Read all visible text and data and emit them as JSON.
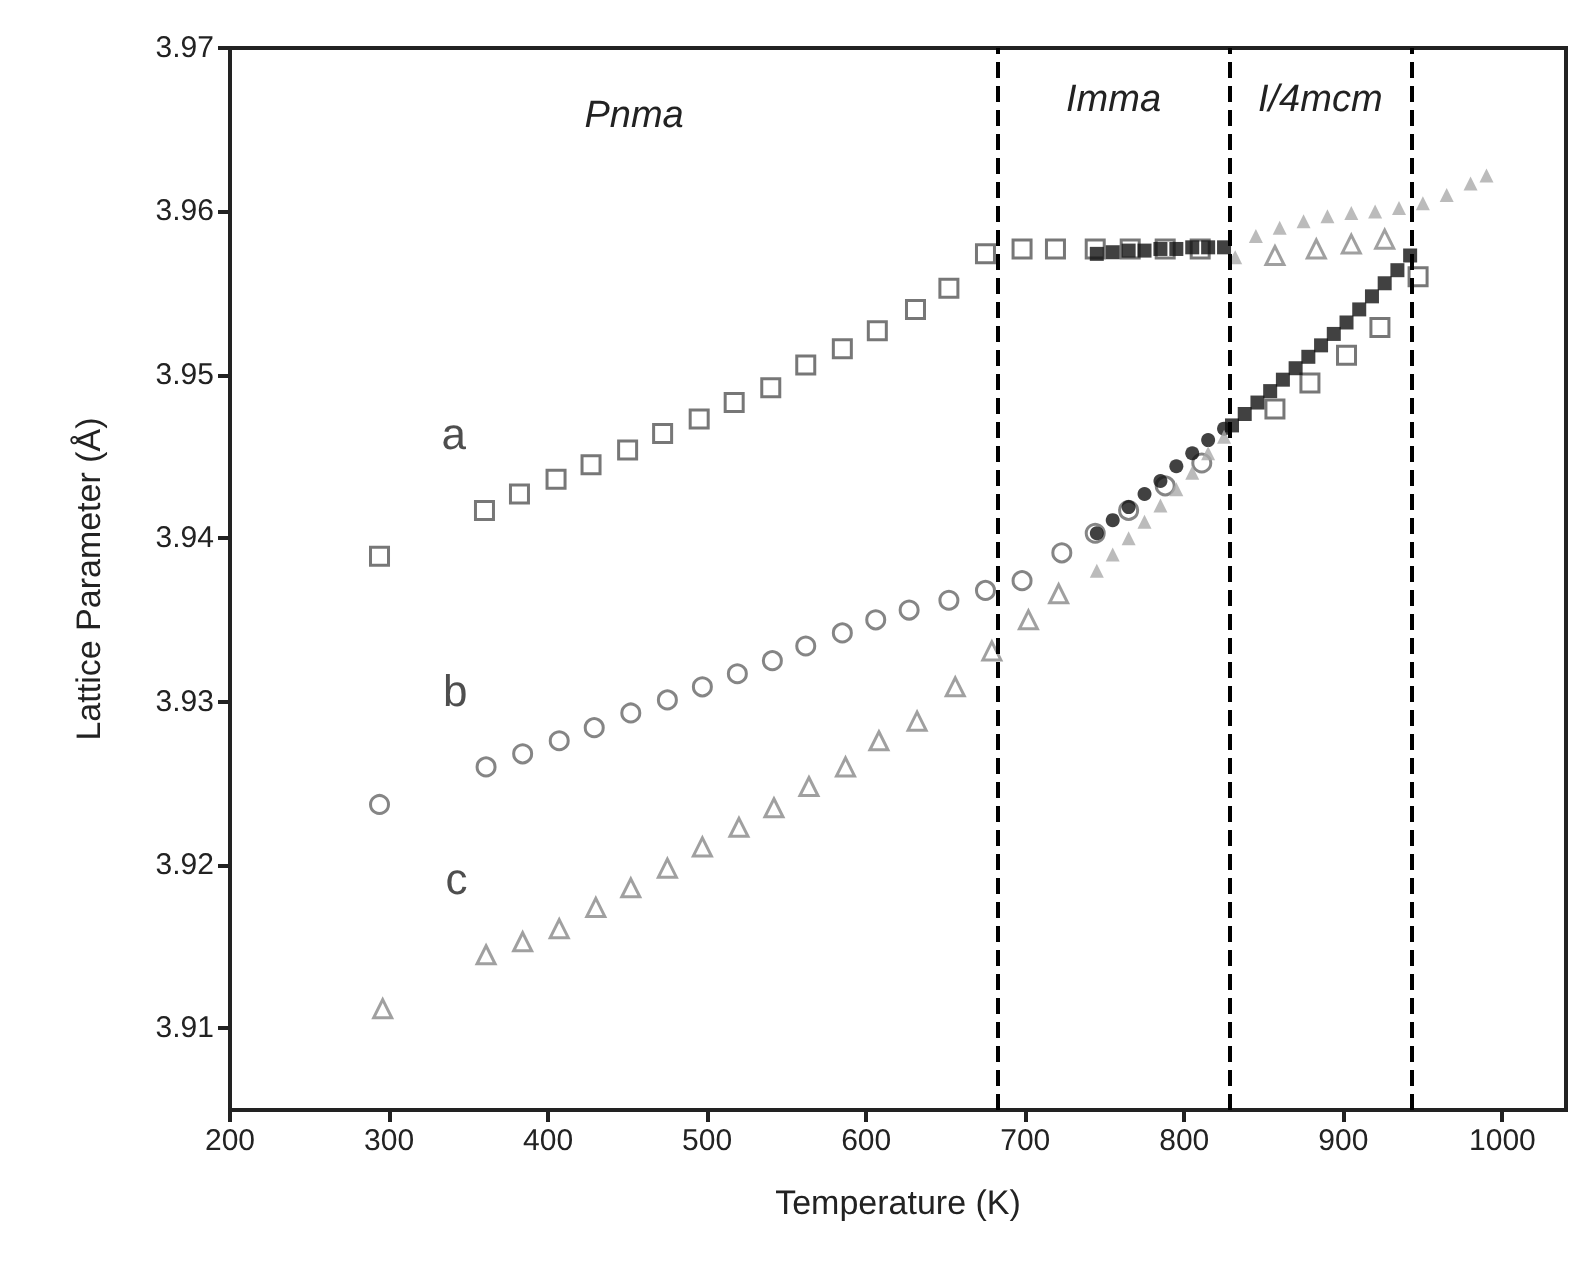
{
  "chart_data": {
    "type": "scatter",
    "xlabel": "Temperature (K)",
    "ylabel": "Lattice Parameter (Å)",
    "xlim": [
      200,
      1040
    ],
    "xticks": [
      200,
      300,
      400,
      500,
      600,
      700,
      800,
      900,
      1000
    ],
    "ylim": [
      3.905,
      3.97
    ],
    "yticks": [
      3.91,
      3.92,
      3.93,
      3.94,
      3.95,
      3.96,
      3.97
    ],
    "grid": false,
    "legend": false,
    "series": [
      {
        "name": "a",
        "color": "#555555",
        "marker": "square",
        "x": [
          294,
          360,
          382,
          405,
          427,
          450,
          472,
          495,
          517,
          540,
          562,
          585,
          607,
          631,
          652,
          675,
          698,
          719,
          744,
          766,
          788,
          810,
          857,
          879,
          902,
          923,
          947
        ],
        "values": [
          3.9389,
          3.9417,
          3.9427,
          3.9436,
          3.9445,
          3.9454,
          3.9464,
          3.9473,
          3.9483,
          3.9492,
          3.9506,
          3.9516,
          3.9527,
          3.954,
          3.9553,
          3.9574,
          3.9577,
          3.9577,
          3.9577,
          3.9577,
          3.9577,
          3.9577,
          3.9479,
          3.9495,
          3.9512,
          3.9529,
          3.956
        ]
      },
      {
        "name": "b",
        "color": "#666666",
        "marker": "circle",
        "x": [
          294,
          361,
          384,
          407,
          429,
          452,
          475,
          497,
          519,
          541,
          562,
          585,
          606,
          627,
          652,
          675,
          698,
          723,
          744,
          765,
          788,
          811
        ],
        "values": [
          3.9237,
          3.926,
          3.9268,
          3.9276,
          3.9284,
          3.9293,
          3.9301,
          3.9309,
          3.9317,
          3.9325,
          3.9334,
          3.9342,
          3.935,
          3.9356,
          3.9362,
          3.9368,
          3.9374,
          3.9391,
          3.9403,
          3.9417,
          3.9432,
          3.9446
        ]
      },
      {
        "name": "c",
        "color": "#888888",
        "marker": "triangle",
        "x": [
          296,
          361,
          384,
          407,
          430,
          452,
          475,
          497,
          520,
          542,
          564,
          587,
          608,
          632,
          656,
          679,
          702,
          721,
          857,
          883,
          905,
          926
        ],
        "values": [
          3.9112,
          3.9145,
          3.9153,
          3.9161,
          3.9174,
          3.9186,
          3.9198,
          3.9211,
          3.9223,
          3.9235,
          3.9248,
          3.926,
          3.9276,
          3.9288,
          3.9309,
          3.9331,
          3.935,
          3.9366,
          3.9573,
          3.9577,
          3.958,
          3.9583
        ]
      },
      {
        "color": "#111111",
        "marker": "square",
        "x": [
          745,
          755,
          765,
          775,
          785,
          795,
          805,
          815,
          825,
          830,
          838,
          846,
          854,
          862,
          870,
          878,
          886,
          894,
          902,
          910,
          918,
          926,
          934,
          942
        ],
        "values": [
          3.9574,
          3.9575,
          3.9576,
          3.9576,
          3.9577,
          3.9577,
          3.9578,
          3.9578,
          3.9578,
          3.9469,
          3.9476,
          3.9483,
          3.949,
          3.9497,
          3.9504,
          3.9511,
          3.9518,
          3.9525,
          3.9532,
          3.954,
          3.9548,
          3.9556,
          3.9564,
          3.9573
        ]
      },
      {
        "color": "#111111",
        "marker": "circle",
        "x": [
          745,
          755,
          765,
          775,
          785,
          795,
          805,
          815,
          825
        ],
        "values": [
          3.9403,
          3.9411,
          3.9419,
          3.9427,
          3.9435,
          3.9444,
          3.9452,
          3.946,
          3.9467
        ]
      },
      {
        "color": "#aaaaaa",
        "marker": "triangle",
        "x": [
          745,
          755,
          765,
          775,
          785,
          795,
          805,
          815,
          825,
          832,
          845,
          860,
          875,
          890,
          905,
          920,
          935,
          950,
          965,
          980,
          990
        ],
        "values": [
          3.938,
          3.939,
          3.94,
          3.941,
          3.942,
          3.943,
          3.944,
          3.9452,
          3.9462,
          3.9572,
          3.9585,
          3.959,
          3.9594,
          3.9597,
          3.9599,
          3.96,
          3.9602,
          3.9605,
          3.961,
          3.9617,
          3.9622
        ]
      }
    ],
    "ref_lines": [
      {
        "axis": "x",
        "value": 683,
        "line_style": "dashed",
        "color": "#000000"
      },
      {
        "axis": "x",
        "value": 828,
        "line_style": "dashed",
        "color": "#000000"
      },
      {
        "axis": "x",
        "value": 943,
        "line_style": "dashed",
        "color": "#000000"
      }
    ],
    "annotations": [
      "Pnma",
      "Imma",
      "I/4mcm"
    ]
  }
}
